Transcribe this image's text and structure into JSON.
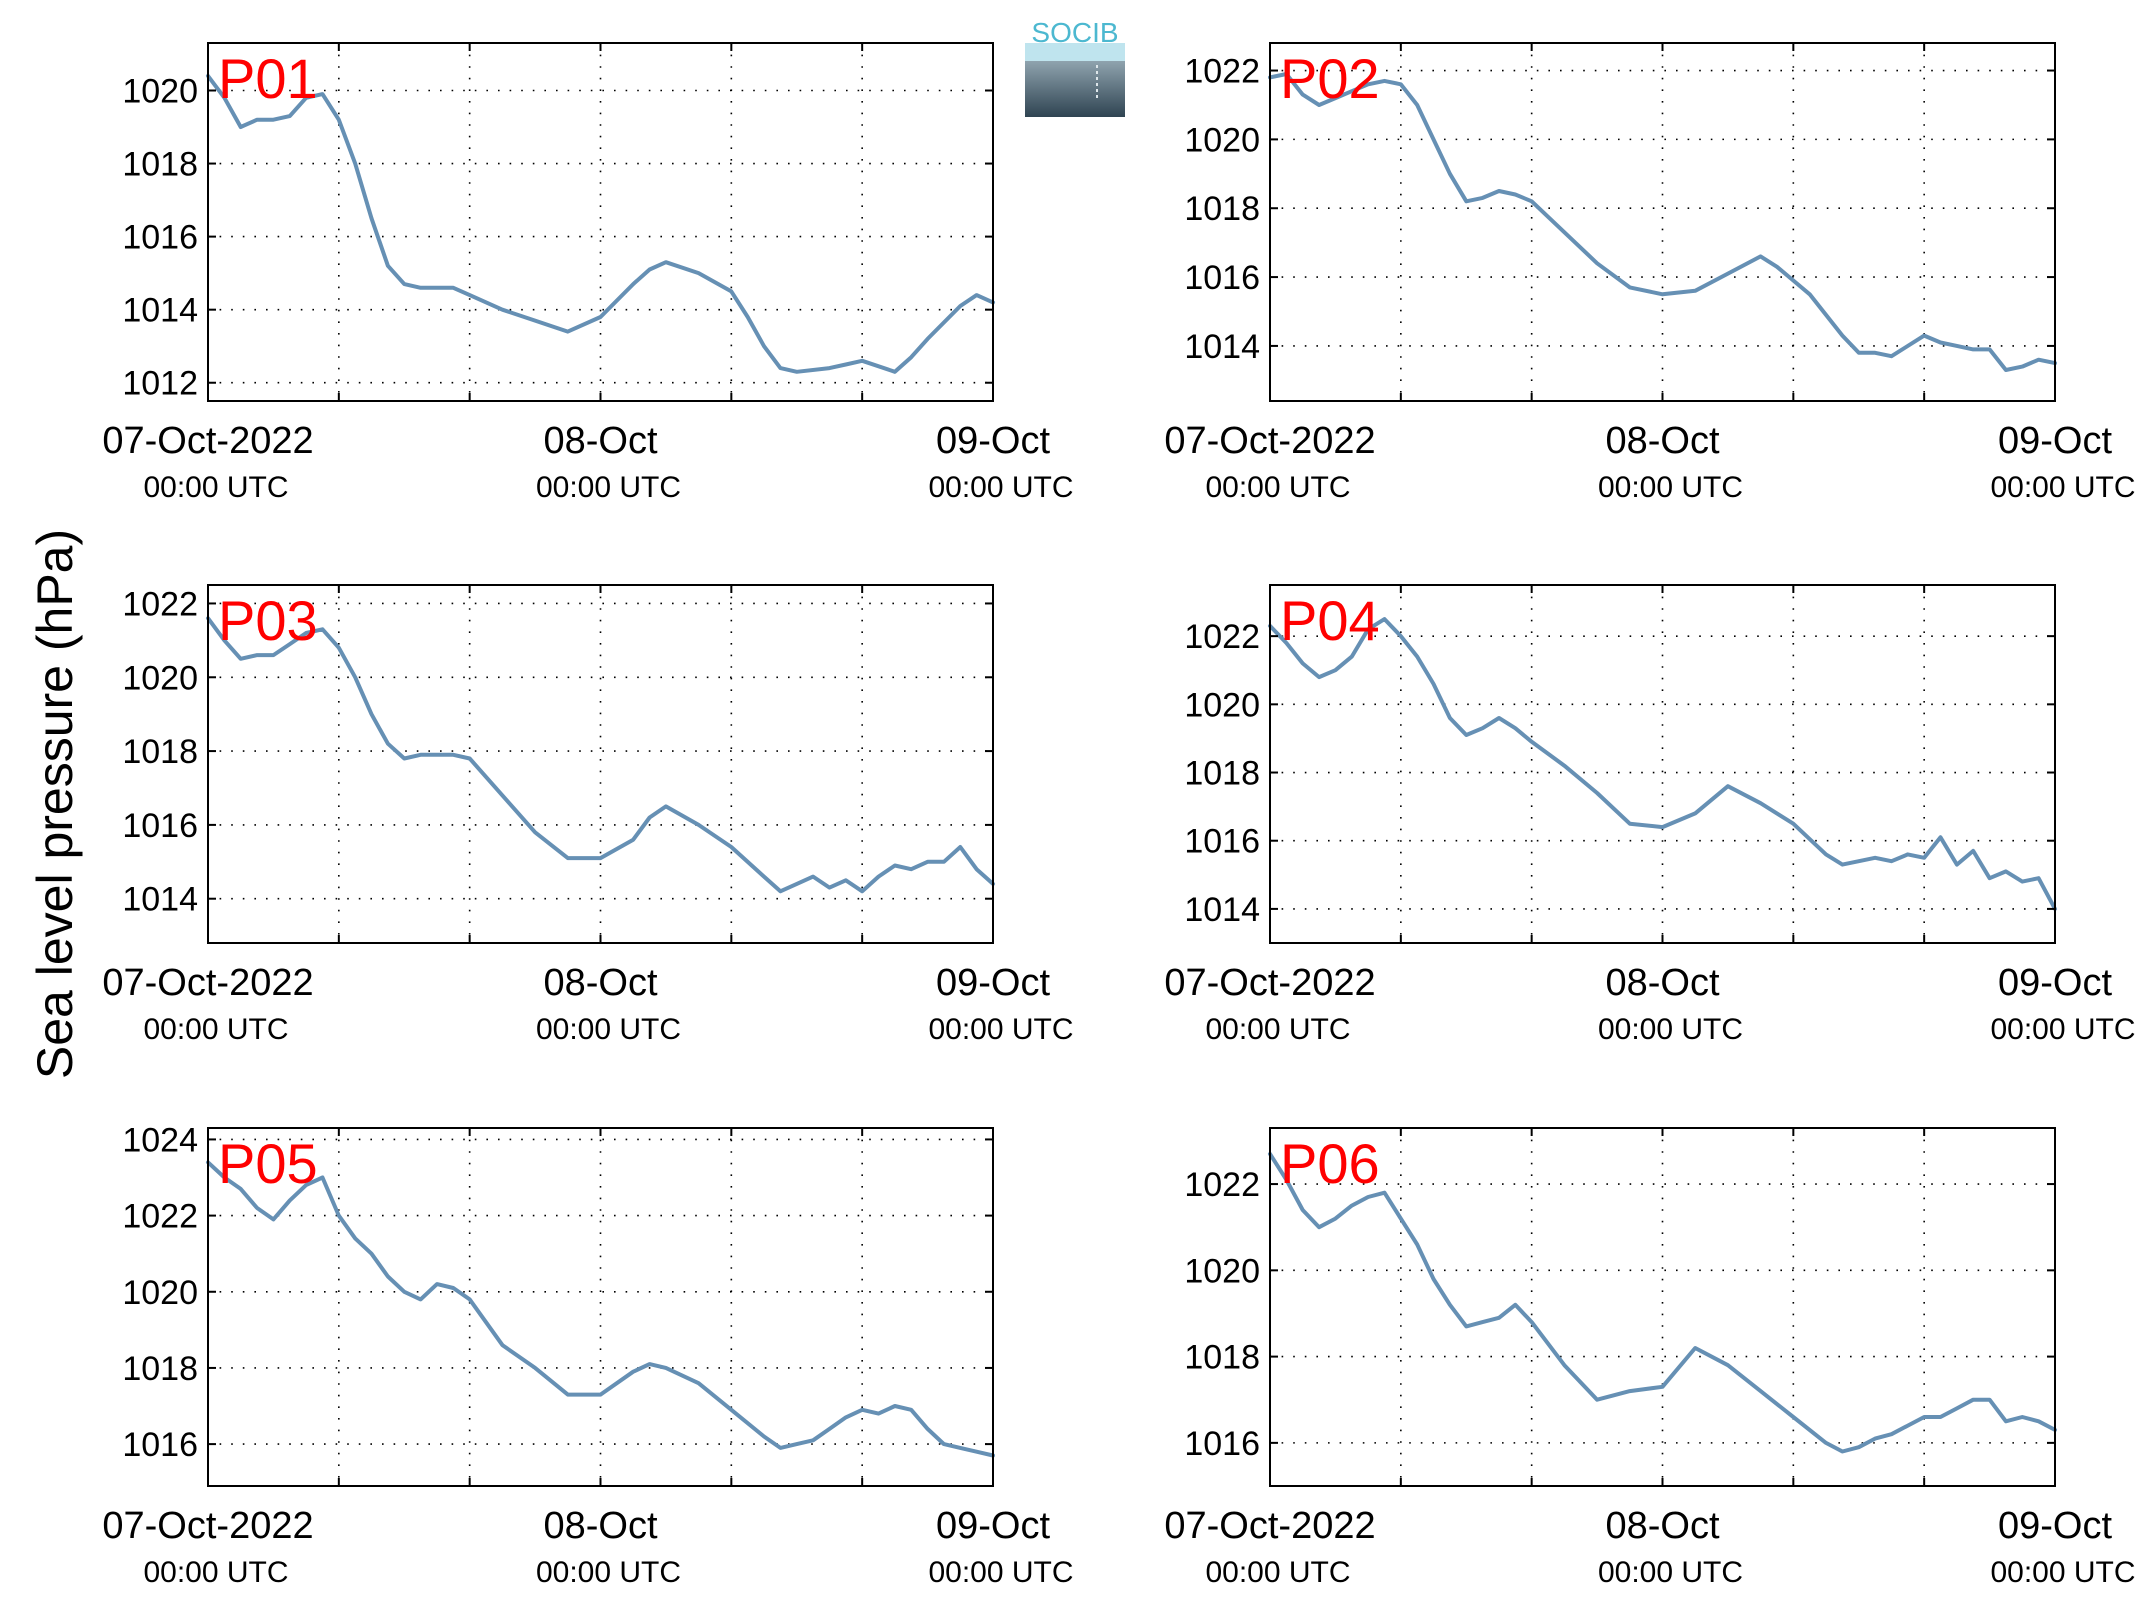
{
  "figure": {
    "ylabel": "Sea level pressure (hPa)",
    "logo": {
      "text": "SOCIB",
      "color": "#4cb8d0"
    },
    "line_color": "#6690b4",
    "label_color": "#ff0000"
  },
  "chart_data": [
    {
      "type": "line",
      "label": "P01",
      "x_range": [
        "2022-10-07T00:00",
        "2022-10-09T00:00"
      ],
      "x_ticks": [
        {
          "top": "07-Oct-2022",
          "bottom": "00:00 UTC"
        },
        {
          "top": "08-Oct",
          "bottom": "00:00 UTC"
        },
        {
          "top": "09-Oct",
          "bottom": "00:00 UTC"
        }
      ],
      "ylim": [
        1011.5,
        1021.3
      ],
      "yticks": [
        1012,
        1014,
        1016,
        1018,
        1020
      ],
      "grid": true,
      "series": [
        {
          "x_hours": [
            0,
            1,
            2,
            3,
            4,
            5,
            6,
            7,
            8,
            9,
            10,
            11,
            12,
            13,
            14,
            15,
            16,
            18,
            20,
            22,
            24,
            26,
            27,
            28,
            30,
            32,
            33,
            34,
            35,
            36,
            38,
            39,
            40,
            42,
            43,
            44,
            46,
            47,
            48
          ],
          "values": [
            1020.4,
            1019.8,
            1019.0,
            1019.2,
            1019.2,
            1019.3,
            1019.8,
            1019.9,
            1019.2,
            1018.0,
            1016.5,
            1015.2,
            1014.7,
            1014.6,
            1014.6,
            1014.6,
            1014.4,
            1014.0,
            1013.7,
            1013.4,
            1013.8,
            1014.7,
            1015.1,
            1015.3,
            1015.0,
            1014.5,
            1013.8,
            1013.0,
            1012.4,
            1012.3,
            1012.4,
            1012.5,
            1012.6,
            1012.3,
            1012.7,
            1013.2,
            1014.1,
            1014.4,
            1014.2
          ]
        }
      ]
    },
    {
      "type": "line",
      "label": "P02",
      "x_range": [
        "2022-10-07T00:00",
        "2022-10-09T00:00"
      ],
      "x_ticks": [
        {
          "top": "07-Oct-2022",
          "bottom": "00:00 UTC"
        },
        {
          "top": "08-Oct",
          "bottom": "00:00 UTC"
        },
        {
          "top": "09-Oct",
          "bottom": "00:00 UTC"
        }
      ],
      "ylim": [
        1012.4,
        1022.8
      ],
      "yticks": [
        1014,
        1016,
        1018,
        1020,
        1022
      ],
      "grid": true,
      "series": [
        {
          "x_hours": [
            0,
            1,
            2,
            3,
            4,
            5,
            6,
            7,
            8,
            9,
            10,
            11,
            12,
            13,
            14,
            15,
            16,
            18,
            20,
            22,
            24,
            26,
            28,
            30,
            31,
            32,
            33,
            34,
            35,
            36,
            37,
            38,
            40,
            41,
            42,
            43,
            44,
            45,
            46,
            47,
            48
          ],
          "values": [
            1021.8,
            1021.9,
            1021.3,
            1021.0,
            1021.2,
            1021.4,
            1021.6,
            1021.7,
            1021.6,
            1021.0,
            1020.0,
            1019.0,
            1018.2,
            1018.3,
            1018.5,
            1018.4,
            1018.2,
            1017.3,
            1016.4,
            1015.7,
            1015.5,
            1015.6,
            1016.1,
            1016.6,
            1016.3,
            1015.9,
            1015.5,
            1014.9,
            1014.3,
            1013.8,
            1013.8,
            1013.7,
            1014.3,
            1014.1,
            1014.0,
            1013.9,
            1013.9,
            1013.3,
            1013.4,
            1013.6,
            1013.5
          ]
        }
      ]
    },
    {
      "type": "line",
      "label": "P03",
      "x_range": [
        "2022-10-07T00:00",
        "2022-10-09T00:00"
      ],
      "x_ticks": [
        {
          "top": "07-Oct-2022",
          "bottom": "00:00 UTC"
        },
        {
          "top": "08-Oct",
          "bottom": "00:00 UTC"
        },
        {
          "top": "09-Oct",
          "bottom": "00:00 UTC"
        }
      ],
      "ylim": [
        1012.8,
        1022.5
      ],
      "yticks": [
        1014,
        1016,
        1018,
        1020,
        1022
      ],
      "grid": true,
      "series": [
        {
          "x_hours": [
            0,
            1,
            2,
            3,
            4,
            5,
            6,
            7,
            8,
            9,
            10,
            11,
            12,
            13,
            14,
            15,
            16,
            18,
            20,
            22,
            24,
            26,
            27,
            28,
            30,
            32,
            34,
            35,
            36,
            37,
            38,
            39,
            40,
            41,
            42,
            43,
            44,
            45,
            46,
            47,
            48
          ],
          "values": [
            1021.6,
            1021.0,
            1020.5,
            1020.6,
            1020.6,
            1020.9,
            1021.2,
            1021.3,
            1020.8,
            1020.0,
            1019.0,
            1018.2,
            1017.8,
            1017.9,
            1017.9,
            1017.9,
            1017.8,
            1016.8,
            1015.8,
            1015.1,
            1015.1,
            1015.6,
            1016.2,
            1016.5,
            1016.0,
            1015.4,
            1014.6,
            1014.2,
            1014.4,
            1014.6,
            1014.3,
            1014.5,
            1014.2,
            1014.6,
            1014.9,
            1014.8,
            1015.0,
            1015.0,
            1015.4,
            1014.8,
            1014.4
          ]
        }
      ]
    },
    {
      "type": "line",
      "label": "P04",
      "x_range": [
        "2022-10-07T00:00",
        "2022-10-09T00:00"
      ],
      "x_ticks": [
        {
          "top": "07-Oct-2022",
          "bottom": "00:00 UTC"
        },
        {
          "top": "08-Oct",
          "bottom": "00:00 UTC"
        },
        {
          "top": "09-Oct",
          "bottom": "00:00 UTC"
        }
      ],
      "ylim": [
        1013.0,
        1023.5
      ],
      "yticks": [
        1014,
        1016,
        1018,
        1020,
        1022
      ],
      "grid": true,
      "series": [
        {
          "x_hours": [
            0,
            1,
            2,
            3,
            4,
            5,
            6,
            7,
            8,
            9,
            10,
            11,
            12,
            13,
            14,
            15,
            16,
            18,
            20,
            22,
            24,
            26,
            28,
            30,
            32,
            34,
            35,
            36,
            37,
            38,
            39,
            40,
            41,
            42,
            43,
            44,
            45,
            46,
            47,
            48
          ],
          "values": [
            1022.3,
            1021.8,
            1021.2,
            1020.8,
            1021.0,
            1021.4,
            1022.2,
            1022.5,
            1022.0,
            1021.4,
            1020.6,
            1019.6,
            1019.1,
            1019.3,
            1019.6,
            1019.3,
            1018.9,
            1018.2,
            1017.4,
            1016.5,
            1016.4,
            1016.8,
            1017.6,
            1017.1,
            1016.5,
            1015.6,
            1015.3,
            1015.4,
            1015.5,
            1015.4,
            1015.6,
            1015.5,
            1016.1,
            1015.3,
            1015.7,
            1014.9,
            1015.1,
            1014.8,
            1014.9,
            1014.0
          ]
        }
      ]
    },
    {
      "type": "line",
      "label": "P05",
      "x_range": [
        "2022-10-07T00:00",
        "2022-10-09T00:00"
      ],
      "x_ticks": [
        {
          "top": "07-Oct-2022",
          "bottom": "00:00 UTC"
        },
        {
          "top": "08-Oct",
          "bottom": "00:00 UTC"
        },
        {
          "top": "09-Oct",
          "bottom": "00:00 UTC"
        }
      ],
      "ylim": [
        1014.9,
        1024.3
      ],
      "yticks": [
        1016,
        1018,
        1020,
        1022,
        1024
      ],
      "grid": true,
      "series": [
        {
          "x_hours": [
            0,
            1,
            2,
            3,
            4,
            5,
            6,
            7,
            8,
            9,
            10,
            11,
            12,
            13,
            14,
            15,
            16,
            18,
            20,
            22,
            24,
            26,
            27,
            28,
            30,
            32,
            34,
            35,
            36,
            37,
            38,
            39,
            40,
            41,
            42,
            43,
            44,
            45,
            46,
            47,
            48
          ],
          "values": [
            1023.4,
            1023.0,
            1022.7,
            1022.2,
            1021.9,
            1022.4,
            1022.8,
            1023.0,
            1022.0,
            1021.4,
            1021.0,
            1020.4,
            1020.0,
            1019.8,
            1020.2,
            1020.1,
            1019.8,
            1018.6,
            1018.0,
            1017.3,
            1017.3,
            1017.9,
            1018.1,
            1018.0,
            1017.6,
            1016.9,
            1016.2,
            1015.9,
            1016.0,
            1016.1,
            1016.4,
            1016.7,
            1016.9,
            1016.8,
            1017.0,
            1016.9,
            1016.4,
            1016.0,
            1015.9,
            1015.8,
            1015.7
          ]
        }
      ]
    },
    {
      "type": "line",
      "label": "P06",
      "x_range": [
        "2022-10-07T00:00",
        "2022-10-09T00:00"
      ],
      "x_ticks": [
        {
          "top": "07-Oct-2022",
          "bottom": "00:00 UTC"
        },
        {
          "top": "08-Oct",
          "bottom": "00:00 UTC"
        },
        {
          "top": "09-Oct",
          "bottom": "00:00 UTC"
        }
      ],
      "ylim": [
        1015.0,
        1023.3
      ],
      "yticks": [
        1016,
        1018,
        1020,
        1022
      ],
      "grid": true,
      "series": [
        {
          "x_hours": [
            0,
            1,
            2,
            3,
            4,
            5,
            6,
            7,
            8,
            9,
            10,
            11,
            12,
            13,
            14,
            15,
            16,
            18,
            20,
            22,
            24,
            26,
            28,
            30,
            32,
            34,
            35,
            36,
            37,
            38,
            39,
            40,
            41,
            42,
            43,
            44,
            45,
            46,
            47,
            48
          ],
          "values": [
            1022.7,
            1022.1,
            1021.4,
            1021.0,
            1021.2,
            1021.5,
            1021.7,
            1021.8,
            1021.2,
            1020.6,
            1019.8,
            1019.2,
            1018.7,
            1018.8,
            1018.9,
            1019.2,
            1018.8,
            1017.8,
            1017.0,
            1017.2,
            1017.3,
            1018.2,
            1017.8,
            1017.2,
            1016.6,
            1016.0,
            1015.8,
            1015.9,
            1016.1,
            1016.2,
            1016.4,
            1016.6,
            1016.6,
            1016.8,
            1017.0,
            1017.0,
            1016.5,
            1016.6,
            1016.5,
            1016.3
          ]
        }
      ]
    }
  ]
}
